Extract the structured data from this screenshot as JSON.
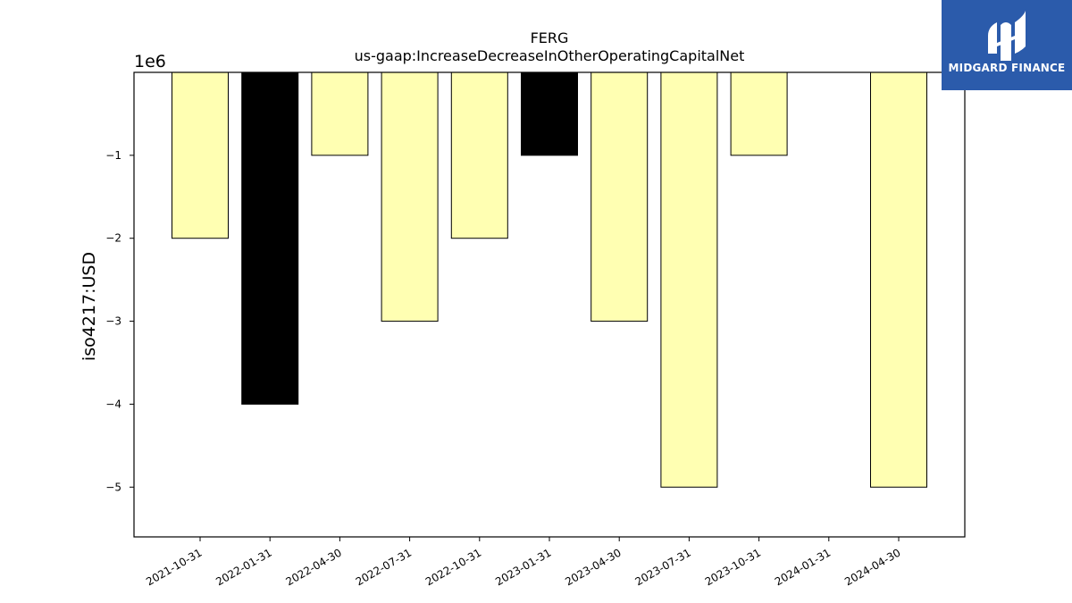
{
  "chart_data": {
    "type": "bar",
    "title": "FERG",
    "subtitle": "us-gaap:IncreaseDecreaseInOtherOperatingCapitalNet",
    "ylabel": "iso4217:USD",
    "xlabel": "",
    "y_multiplier_label": "1e6",
    "categories": [
      "2021-10-31",
      "2022-01-31",
      "2022-04-30",
      "2022-07-31",
      "2022-10-31",
      "2023-01-31",
      "2023-04-30",
      "2023-07-31",
      "2023-10-31",
      "2024-01-31",
      "2024-04-30"
    ],
    "values": [
      -2000000,
      -4000000,
      -1000000,
      -3000000,
      -2000000,
      -1000000,
      -3000000,
      -5000000,
      -1000000,
      0,
      -5000000
    ],
    "bar_colors": [
      "#ffffb2",
      "#000000",
      "#ffffb2",
      "#ffffb2",
      "#ffffb2",
      "#000000",
      "#ffffb2",
      "#ffffb2",
      "#ffffb2",
      "#ffffb2",
      "#ffffb2"
    ],
    "ylim": [
      -5600000,
      0
    ],
    "yticks": [
      -1000000,
      -2000000,
      -3000000,
      -4000000,
      -5000000
    ],
    "ytick_labels": [
      "−1",
      "−2",
      "−3",
      "−4",
      "−5"
    ],
    "grid": false,
    "legend": "none"
  },
  "logo": {
    "text": "MIDGARD FINANCE",
    "color": "#2b5bab"
  }
}
